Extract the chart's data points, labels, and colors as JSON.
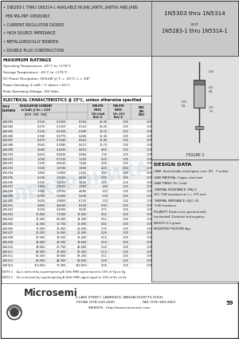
{
  "title_left_lines": [
    "• 1N5283-1 THRU 1N5314-1 AVAILABLE IN JAN, JANTX, JANTXV AND JANS",
    "  PER MIL-PRF-19500/463",
    "• CURRENT REGULATOR DIODES",
    "• HIGH SOURCE IMPEDANCE",
    "• METALLURGICALLY BONDED",
    "• DOUBLE PLUG CONSTRUCTION"
  ],
  "title_right_lines": [
    "1N5303 thru 1N5314",
    "and",
    "1N5283-1 thru 1N5314-1"
  ],
  "max_ratings_title": "MAXIMUM RATINGS",
  "max_ratings": [
    "Operating Temperature: -65°C to +175°C",
    "Storage Temperature: -65°C to +175°C",
    "DC Power Dissipation: 500mW @ Tₗ = -55°C, L = 3/8\"",
    "Power Derating: 4 mW / °C above +55°C",
    "Peak Operating Voltage: 100 Volts"
  ],
  "elec_char_title": "ELECTRICAL CHARACTERISTICS @ 25°C, unless otherwise specified",
  "table_rows": [
    [
      "1N5283",
      "0.220",
      "0.1560",
      "0.264",
      "25.00",
      "1.00",
      "1.05"
    ],
    [
      "1N5284",
      "0.270",
      "0.1920",
      "0.324",
      "20.00",
      "1.00",
      "1.05"
    ],
    [
      "1N5285",
      "0.330",
      "0.2350",
      "0.396",
      "18.20",
      "1.00",
      "1.05"
    ],
    [
      "1N5286",
      "0.390",
      "0.2770",
      "0.468",
      "15.40",
      "1.00",
      "1.05"
    ],
    [
      "1N5287",
      "0.470",
      "0.3340",
      "0.564",
      "12.80",
      "1.00",
      "1.05"
    ],
    [
      "1N5288",
      "0.560",
      "0.3980",
      "0.672",
      "10.70",
      "1.00",
      "1.05"
    ],
    [
      "1N5289",
      "0.680",
      "0.4830",
      "0.816",
      "8.80",
      "1.00",
      "1.05"
    ],
    [
      "1N5290",
      "0.820",
      "0.5830",
      "0.984",
      "7.30",
      "1.00",
      "1.05"
    ],
    [
      "1N5291",
      "1.000",
      "0.7100",
      "1.200",
      "6.00",
      "1.00",
      "1.05"
    ],
    [
      "1N5292",
      "1.200",
      "0.8530",
      "1.440",
      "5.00",
      "1.00",
      "1.05"
    ],
    [
      "1N5293",
      "1.500",
      "1.0700",
      "1.800",
      "4.00",
      "1.00",
      "1.05"
    ],
    [
      "1N5294",
      "1.800",
      "1.2800",
      "2.160",
      "3.30",
      "1.00",
      "1.05"
    ],
    [
      "1N5295",
      "2.200",
      "1.5600",
      "2.640",
      "2.70",
      "1.00",
      "1.05"
    ],
    [
      "1N5296",
      "2.700",
      "1.9200",
      "3.240",
      "2.20",
      "1.00",
      "1.05"
    ],
    [
      "1N5297",
      "3.300",
      "2.3500",
      "3.960",
      "1.80",
      "1.00",
      "1.05"
    ],
    [
      "1N5298",
      "3.900",
      "2.7700",
      "4.680",
      "1.50",
      "1.00",
      "1.05"
    ],
    [
      "1N5299",
      "4.700",
      "3.3400",
      "5.640",
      "1.30",
      "1.00",
      "1.05"
    ],
    [
      "1N5300",
      "5.600",
      "3.9800",
      "6.720",
      "1.10",
      "1.00",
      "1.05"
    ],
    [
      "1N5301",
      "6.800",
      "4.8300",
      "8.160",
      "0.90",
      "1.00",
      "1.05"
    ],
    [
      "1N5302",
      "8.200",
      "5.8300",
      "9.840",
      "0.75",
      "1.00",
      "1.05"
    ],
    [
      "1N5303",
      "10.000",
      "7.1000",
      "12.000",
      "0.62",
      "1.00",
      "1.05"
    ],
    [
      "1N5304",
      "12.000",
      "8.5300",
      "14.400",
      "0.52",
      "1.00",
      "1.05"
    ],
    [
      "1N5305",
      "15.000",
      "10.700",
      "18.000",
      "0.42",
      "1.00",
      "1.05"
    ],
    [
      "1N5306",
      "18.000",
      "12.800",
      "21.600",
      "0.35",
      "1.00",
      "1.05"
    ],
    [
      "1N5307",
      "22.000",
      "15.600",
      "26.400",
      "0.28",
      "1.00",
      "1.05"
    ],
    [
      "1N5308",
      "27.000",
      "19.200",
      "32.400",
      "0.23",
      "1.00",
      "1.05"
    ],
    [
      "1N5309",
      "33.000",
      "23.500",
      "39.600",
      "0.19",
      "1.00",
      "1.05"
    ],
    [
      "1N5310",
      "39.000",
      "27.700",
      "46.800",
      "0.16",
      "1.00",
      "1.05"
    ],
    [
      "1N5311",
      "47.000",
      "33.400",
      "56.400",
      "0.13",
      "1.00",
      "1.05"
    ],
    [
      "1N5312",
      "56.000",
      "39.800",
      "67.200",
      "0.11",
      "1.00",
      "1.05"
    ],
    [
      "1N5313",
      "68.000",
      "48.300",
      "81.600",
      "0.09",
      "1.00",
      "1.05"
    ],
    [
      "1N5314",
      "100.000",
      "71.000",
      "120.000",
      "0.06",
      "1.00",
      "1.05"
    ]
  ],
  "notes": [
    "NOTE 1    Zg is derived by superimposing A 1kHz RMS signal equal to 10% of Vg on Vg",
    "NOTE 2    Zic is derived by superimposing A 1kHz RMS signal equal to 10% of Vic on Vic"
  ],
  "design_data_title": "DESIGN DATA",
  "design_data_items": [
    {
      "label": "CASE:",
      "text": " Hermetically sealed glass case: DO - 7 outline."
    },
    {
      "label": "LEAD MATERIAL:",
      "text": " Copper clad steel"
    },
    {
      "label": "LEAD FINISH:",
      "text": " Tin / Lead"
    },
    {
      "label": "THERMAL RESISTANCE:",
      "text": " (RθJ-C)\n200 °C/W maximum at L = .375 inch"
    },
    {
      "label": "THERMAL IMPEDANCE:",
      "text": " (θJ-C) 20\n°C/W maximum"
    },
    {
      "label": "POLARITY:",
      "text": " Diode to be operated with\nthe banded (Cathode) end negative."
    },
    {
      "label": "WEIGHT:",
      "text": " 0.2 grams"
    },
    {
      "label": "MOUNTING POSITION:",
      "text": " Any"
    }
  ],
  "figure_label": "FIGURE 1",
  "footer_address": "6 LAKE STREET, LAWRENCE, MASSACHUSETTS 01841",
  "footer_phone": "PHONE (978) 620-2600",
  "footer_fax": "FAX (978) 689-0803",
  "footer_website": "WEBSITE:  http://www.microsemi.com",
  "footer_page": "59"
}
